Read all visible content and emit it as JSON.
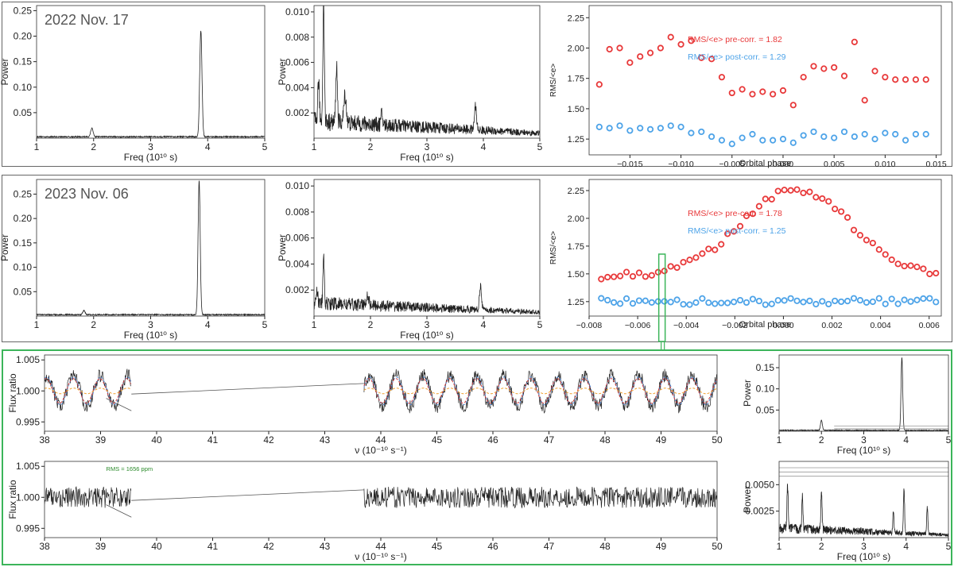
{
  "colors": {
    "frame": "#666666",
    "green_frame": "#3cb55a",
    "pre": "#e8393a",
    "post": "#4da3e8",
    "line": "#222222",
    "model_blue": "#5a8fd8",
    "model_red": "#d04040",
    "model_orange": "#f0a030",
    "rms_text": "#2a8a2a"
  },
  "chart_data": [
    {
      "id": "p1",
      "type": "line",
      "title": "2022 Nov. 17",
      "xlabel": "Freq (10¹⁰ s)",
      "ylabel": "Power",
      "xlim": [
        1,
        5
      ],
      "ylim": [
        0,
        0.26
      ],
      "xticks": [
        "1",
        "2",
        "3",
        "4",
        "5"
      ],
      "yticks": [
        "0.05",
        "0.10",
        "0.15",
        "0.20",
        "0.25"
      ],
      "baseline": 0.004,
      "peaks": [
        [
          1.97,
          0.017,
          0.03
        ],
        [
          3.88,
          0.208,
          0.028
        ]
      ]
    },
    {
      "id": "p2",
      "type": "line",
      "title": "",
      "xlabel": "Freq (10¹⁰ s)",
      "ylabel": "Power",
      "xlim": [
        1,
        5
      ],
      "ylim": [
        0,
        0.0105
      ],
      "xticks": [
        "1",
        "2",
        "3",
        "4",
        "5"
      ],
      "yticks": [
        "0.002",
        "0.004",
        "0.006",
        "0.008",
        "0.010"
      ],
      "baseline": 0.0012,
      "peaks": [
        [
          1.17,
          0.0098,
          0.018
        ],
        [
          1.4,
          0.0046,
          0.02
        ],
        [
          1.08,
          0.0032,
          0.02
        ],
        [
          1.55,
          0.0022,
          0.03
        ],
        [
          3.86,
          0.0019,
          0.025
        ],
        [
          2.2,
          0.0009,
          0.02
        ]
      ]
    },
    {
      "id": "p3",
      "type": "scatter",
      "title": "",
      "xlabel": "Orbital phase",
      "ylabel": "RMS/<e>",
      "xlim": [
        -0.019,
        0.0155
      ],
      "ylim": [
        1.12,
        2.35
      ],
      "xticks": [
        "−0.015",
        "−0.010",
        "−0.005",
        "0.000",
        "0.005",
        "0.010",
        "0.015"
      ],
      "xtick_values": [
        -0.015,
        -0.01,
        -0.005,
        0,
        0.005,
        0.01,
        0.015
      ],
      "ytick_values": [
        1.25,
        1.5,
        1.75,
        2.0,
        2.25
      ],
      "yticks": [
        "1.25",
        "1.50",
        "1.75",
        "2.00",
        "2.25"
      ],
      "legend": [
        "RMS/<e> pre-corr. = 1.82",
        "RMS/<e> post-corr. = 1.29"
      ],
      "series": [
        {
          "name": "pre-corr",
          "x": [
            -0.018,
            -0.017,
            -0.016,
            -0.015,
            -0.014,
            -0.013,
            -0.012,
            -0.011,
            -0.01,
            -0.009,
            -0.008,
            -0.007,
            -0.006,
            -0.005,
            -0.004,
            -0.003,
            -0.002,
            -0.001,
            0,
            0.001,
            0.002,
            0.003,
            0.004,
            0.005,
            0.006,
            0.007,
            0.008,
            0.009,
            0.01,
            0.011,
            0.012,
            0.013,
            0.014
          ],
          "y": [
            1.7,
            1.99,
            2.0,
            1.88,
            1.93,
            1.96,
            2.0,
            2.09,
            2.03,
            2.06,
            1.92,
            1.91,
            1.76,
            1.63,
            1.66,
            1.62,
            1.64,
            1.62,
            1.65,
            1.53,
            1.76,
            1.85,
            1.83,
            1.84,
            1.77,
            2.05,
            1.57,
            1.81,
            1.76,
            1.74,
            1.74,
            1.74,
            1.74
          ]
        },
        {
          "name": "post-corr",
          "x": [
            -0.018,
            -0.017,
            -0.016,
            -0.015,
            -0.014,
            -0.013,
            -0.012,
            -0.011,
            -0.01,
            -0.009,
            -0.008,
            -0.007,
            -0.006,
            -0.005,
            -0.004,
            -0.003,
            -0.002,
            -0.001,
            0,
            0.001,
            0.002,
            0.003,
            0.004,
            0.005,
            0.006,
            0.007,
            0.008,
            0.009,
            0.01,
            0.011,
            0.012,
            0.013,
            0.014
          ],
          "y": [
            1.35,
            1.34,
            1.36,
            1.32,
            1.34,
            1.33,
            1.34,
            1.36,
            1.35,
            1.3,
            1.31,
            1.27,
            1.24,
            1.21,
            1.26,
            1.29,
            1.24,
            1.24,
            1.25,
            1.22,
            1.28,
            1.31,
            1.27,
            1.26,
            1.31,
            1.27,
            1.29,
            1.25,
            1.3,
            1.29,
            1.24,
            1.29,
            1.29
          ]
        }
      ]
    },
    {
      "id": "p4",
      "type": "line",
      "title": "2023 Nov. 06",
      "xlabel": "Freq (10¹⁰ s)",
      "ylabel": "Power",
      "xlim": [
        1,
        5
      ],
      "ylim": [
        0,
        0.28
      ],
      "xticks": [
        "1",
        "2",
        "3",
        "4",
        "5"
      ],
      "yticks": [
        "0.05",
        "0.10",
        "0.15",
        "0.20",
        "0.25"
      ],
      "baseline": 0.004,
      "peaks": [
        [
          1.83,
          0.008,
          0.03
        ],
        [
          3.85,
          0.275,
          0.026
        ]
      ]
    },
    {
      "id": "p5",
      "type": "line",
      "title": "",
      "xlabel": "Freq (10¹⁰ s)",
      "ylabel": "Power",
      "xlim": [
        1,
        5
      ],
      "ylim": [
        0,
        0.0105
      ],
      "xticks": [
        "1",
        "2",
        "3",
        "4",
        "5"
      ],
      "yticks": [
        "0.002",
        "0.004",
        "0.006",
        "0.008",
        "0.010"
      ],
      "baseline": 0.0009,
      "peaks": [
        [
          1.17,
          0.004,
          0.015
        ],
        [
          1.05,
          0.0012,
          0.02
        ],
        [
          1.95,
          0.0008,
          0.03
        ],
        [
          3.95,
          0.0019,
          0.025
        ]
      ]
    },
    {
      "id": "p6",
      "type": "scatter",
      "title": "",
      "xlabel": "Orbital phase",
      "ylabel": "RMS/<e>",
      "xlim": [
        -0.008,
        0.0065
      ],
      "ylim": [
        1.12,
        2.35
      ],
      "xticks": [
        "−0.008",
        "−0.006",
        "−0.004",
        "−0.002",
        "0.000",
        "0.002",
        "0.004",
        "0.006"
      ],
      "xtick_values": [
        -0.008,
        -0.006,
        -0.004,
        -0.002,
        0,
        0.002,
        0.004,
        0.006
      ],
      "ytick_values": [
        1.25,
        1.5,
        1.75,
        2.0,
        2.25
      ],
      "yticks": [
        "1.25",
        "1.50",
        "1.75",
        "2.00",
        "2.25"
      ],
      "legend": [
        "RMS/<e> pre-corr. = 1.78",
        "RMS/<e> post-corr. = 1.25"
      ],
      "highlight_x": -0.005
    },
    {
      "id": "p7",
      "type": "line",
      "title": "",
      "xlabel": "ν (10⁻¹⁰ s⁻¹)",
      "ylabel": "Flux ratio",
      "xlim": [
        38,
        50
      ],
      "ylim": [
        0.9935,
        1.0058
      ],
      "xticks": [
        "38",
        "39",
        "40",
        "41",
        "42",
        "43",
        "44",
        "45",
        "46",
        "47",
        "48",
        "49",
        "50"
      ],
      "yticks": [
        "0.995",
        "1.000",
        "1.005"
      ],
      "ytick_values": [
        0.995,
        1.0,
        1.005
      ],
      "gap": [
        39.55,
        43.7
      ],
      "period": 0.48,
      "amp": 0.0025
    },
    {
      "id": "p8",
      "type": "line",
      "title": "",
      "xlabel": "ν (10⁻¹⁰ s⁻¹)",
      "ylabel": "Flux ratio",
      "xlim": [
        38,
        50
      ],
      "ylim": [
        0.9935,
        1.0058
      ],
      "xticks": [
        "38",
        "39",
        "40",
        "41",
        "42",
        "43",
        "44",
        "45",
        "46",
        "47",
        "48",
        "49",
        "50"
      ],
      "yticks": [
        "0.995",
        "1.000",
        "1.005"
      ],
      "ytick_values": [
        0.995,
        1.0,
        1.005
      ],
      "annotation": "RMS = 1656 ppm",
      "gap": [
        39.55,
        43.7
      ]
    },
    {
      "id": "p9",
      "type": "line",
      "title": "",
      "xlabel": "Freq (10¹⁰ s)",
      "ylabel": "Power",
      "xlim": [
        1,
        5
      ],
      "ylim": [
        0,
        0.18
      ],
      "xticks": [
        "1",
        "2",
        "3",
        "4",
        "5"
      ],
      "yticks": [
        "0.05",
        "0.10",
        "0.15"
      ],
      "ytick_values": [
        0.05,
        0.1,
        0.15
      ],
      "baseline": 0.003,
      "peaks": [
        [
          2.0,
          0.024,
          0.03
        ],
        [
          3.9,
          0.172,
          0.028
        ]
      ]
    },
    {
      "id": "p10",
      "type": "line",
      "title": "",
      "xlabel": "Freq (10¹⁰ s)",
      "ylabel": "Power",
      "xlim": [
        1,
        5
      ],
      "ylim": [
        0,
        0.0072
      ],
      "xticks": [
        "1",
        "2",
        "3",
        "4",
        "5"
      ],
      "yticks": [
        "0.0025",
        "0.0050"
      ],
      "ytick_values": [
        0.0025,
        0.005
      ],
      "baseline": 0.0008,
      "peaks": [
        [
          1.2,
          0.004,
          0.02
        ],
        [
          1.55,
          0.003,
          0.02
        ],
        [
          2.0,
          0.0038,
          0.02
        ],
        [
          3.95,
          0.0042,
          0.02
        ],
        [
          3.7,
          0.002,
          0.02
        ],
        [
          4.5,
          0.0025,
          0.02
        ]
      ]
    }
  ]
}
